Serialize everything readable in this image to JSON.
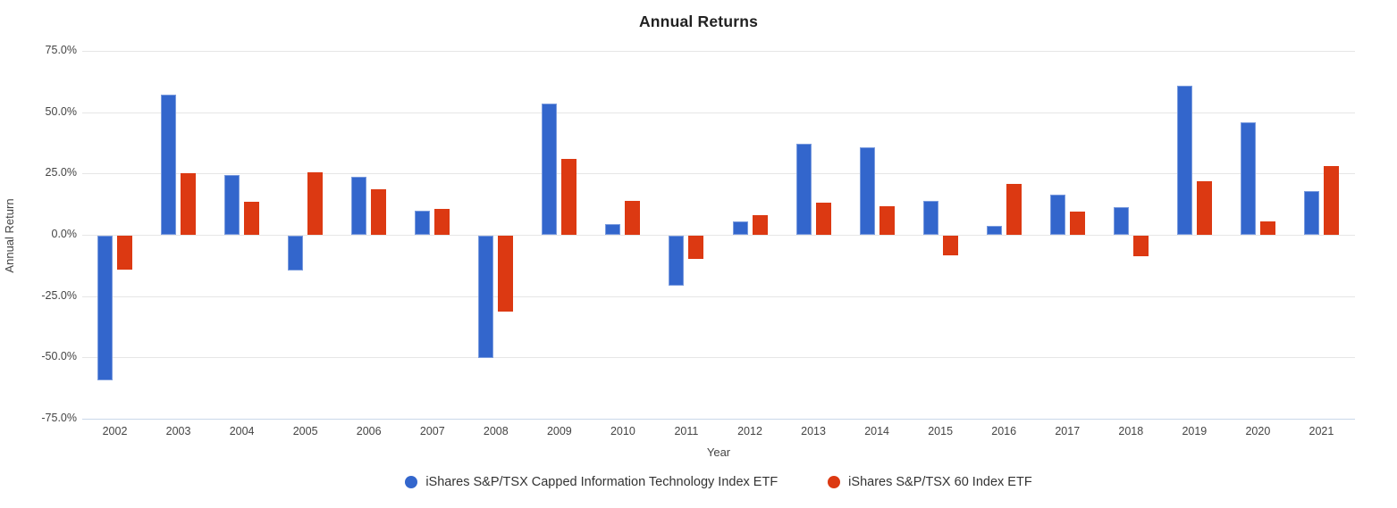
{
  "title": "Annual Returns",
  "axes": {
    "y_title": "Annual Return",
    "x_title": "Year",
    "y_ticks": [
      "75.0%",
      "50.0%",
      "25.0%",
      "0.0%",
      "-25.0%",
      "-50.0%",
      "-75.0%"
    ]
  },
  "colors": {
    "series_blue": "#3366CC",
    "series_red": "#DC3912",
    "gridline": "#e6e6e6",
    "baseline": "#c9d8ea",
    "axis_text": "#444444",
    "title_text": "#212121"
  },
  "legend": {
    "items": [
      {
        "label": "iShares S&P/TSX Capped Information Technology Index ETF",
        "color": "#3366CC"
      },
      {
        "label": "iShares S&P/TSX 60 Index ETF",
        "color": "#DC3912"
      }
    ]
  },
  "chart_data": {
    "type": "bar",
    "title": "Annual Returns",
    "xlabel": "Year",
    "ylabel": "Annual Return",
    "ylim": [
      -75,
      75
    ],
    "y_tick_step_pct": 25,
    "grid": true,
    "legend_position": "bottom",
    "categories": [
      "2002",
      "2003",
      "2004",
      "2005",
      "2006",
      "2007",
      "2008",
      "2009",
      "2010",
      "2011",
      "2012",
      "2013",
      "2014",
      "2015",
      "2016",
      "2017",
      "2018",
      "2019",
      "2020",
      "2021"
    ],
    "series": [
      {
        "name": "iShares S&P/TSX Capped Information Technology Index ETF",
        "color": "#3366CC",
        "values": [
          -59.0,
          57.0,
          24.5,
          -14.3,
          23.7,
          10.0,
          -50.0,
          53.5,
          4.5,
          -20.4,
          5.6,
          37.2,
          35.5,
          13.8,
          3.5,
          16.4,
          11.2,
          60.7,
          45.8,
          17.8
        ]
      },
      {
        "name": "iShares S&P/TSX 60 Index ETF",
        "color": "#DC3912",
        "values": [
          -13.8,
          25.3,
          13.5,
          25.4,
          18.7,
          10.4,
          -31.0,
          31.0,
          13.8,
          -9.4,
          7.9,
          13.0,
          11.8,
          -8.0,
          20.7,
          9.3,
          -8.3,
          21.8,
          5.3,
          28.0
        ]
      }
    ]
  }
}
